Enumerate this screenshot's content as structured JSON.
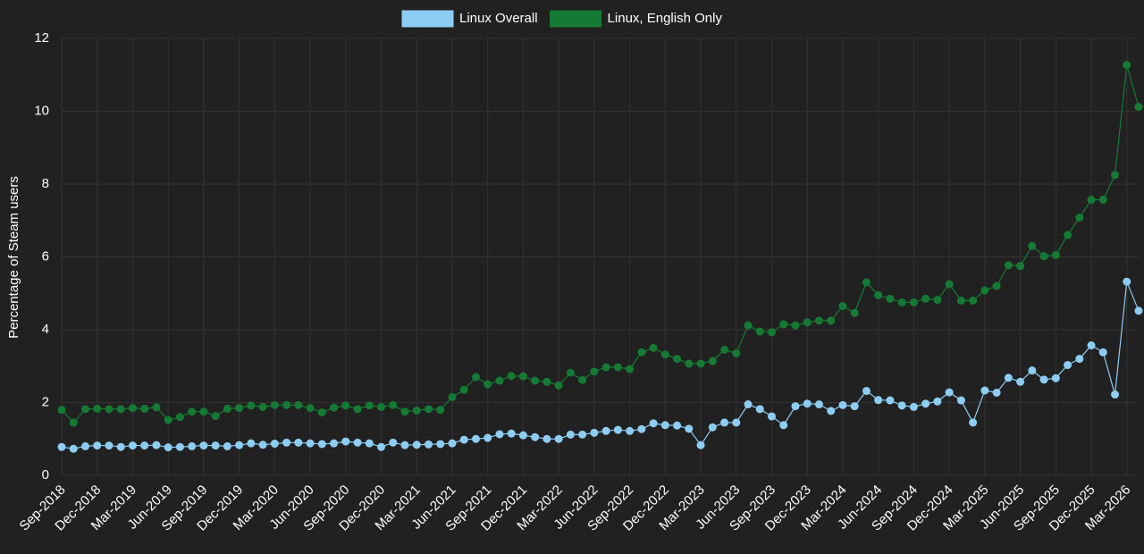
{
  "chart_data": {
    "type": "line",
    "y_label": "Percentage of Steam users",
    "categories": [
      "Sep-2018",
      null,
      null,
      "Dec-2018",
      null,
      null,
      "Mar-2019",
      null,
      null,
      "Jun-2019",
      null,
      null,
      "Sep-2019",
      null,
      null,
      "Dec-2019",
      null,
      null,
      "Mar-2020",
      null,
      null,
      "Jun-2020",
      null,
      null,
      "Sep-2020",
      null,
      null,
      "Dec-2020",
      null,
      null,
      "Mar-2021",
      null,
      null,
      "Jun-2021",
      null,
      null,
      "Sep-2021",
      null,
      null,
      "Dec-2021",
      null,
      null,
      "Mar-2022",
      null,
      null,
      "Jun-2022",
      null,
      null,
      "Sep-2022",
      null,
      null,
      "Dec-2022",
      null,
      null,
      "Mar-2023",
      null,
      null,
      "Jun-2023",
      null,
      null,
      "Sep-2023",
      null,
      null,
      "Dec-2023",
      null,
      null,
      "Mar-2024",
      null,
      null,
      "Jun-2024",
      null,
      null,
      "Sep-2024",
      null,
      null,
      "Dec-2024",
      null,
      null,
      "Mar-2025",
      null,
      null,
      "Jun-2025",
      null,
      null,
      "Sep-2025",
      null,
      null,
      "Dec-2025",
      null,
      null,
      "Mar-2026",
      null
    ],
    "series": [
      {
        "name": "Linux Overall",
        "color": "#8ecdf2",
        "values": [
          0.78,
          0.73,
          0.8,
          0.82,
          0.82,
          0.78,
          0.82,
          0.82,
          0.83,
          0.77,
          0.78,
          0.8,
          0.82,
          0.82,
          0.8,
          0.83,
          0.88,
          0.84,
          0.87,
          0.9,
          0.9,
          0.88,
          0.86,
          0.88,
          0.93,
          0.9,
          0.88,
          0.78,
          0.9,
          0.83,
          0.84,
          0.85,
          0.86,
          0.88,
          0.98,
          1.0,
          1.03,
          1.13,
          1.15,
          1.1,
          1.05,
          1.0,
          1.0,
          1.12,
          1.12,
          1.17,
          1.22,
          1.25,
          1.22,
          1.27,
          1.43,
          1.38,
          1.37,
          1.28,
          0.83,
          1.32,
          1.45,
          1.45,
          1.95,
          1.82,
          1.62,
          1.38,
          1.9,
          1.97,
          1.95,
          1.77,
          1.93,
          1.9,
          2.32,
          2.07,
          2.06,
          1.92,
          1.88,
          1.97,
          2.03,
          2.28,
          2.06,
          1.45,
          2.33,
          2.27,
          2.68,
          2.57,
          2.88,
          2.63,
          2.67,
          3.03,
          3.2,
          3.57,
          3.38,
          2.22,
          5.32,
          4.52
        ]
      },
      {
        "name": "Linux, English Only",
        "color": "#157a34",
        "values": [
          1.8,
          1.45,
          1.82,
          1.83,
          1.82,
          1.82,
          1.85,
          1.83,
          1.87,
          1.52,
          1.6,
          1.75,
          1.75,
          1.63,
          1.83,
          1.85,
          1.92,
          1.88,
          1.93,
          1.93,
          1.93,
          1.85,
          1.73,
          1.86,
          1.92,
          1.82,
          1.92,
          1.88,
          1.93,
          1.75,
          1.78,
          1.82,
          1.8,
          2.15,
          2.35,
          2.7,
          2.5,
          2.6,
          2.73,
          2.72,
          2.6,
          2.57,
          2.47,
          2.82,
          2.62,
          2.85,
          2.97,
          2.97,
          2.92,
          3.38,
          3.5,
          3.32,
          3.2,
          3.07,
          3.07,
          3.14,
          3.45,
          3.35,
          4.12,
          3.95,
          3.93,
          4.15,
          4.12,
          4.2,
          4.25,
          4.25,
          4.65,
          4.46,
          5.3,
          4.95,
          4.85,
          4.75,
          4.75,
          4.85,
          4.82,
          5.25,
          4.8,
          4.8,
          5.08,
          5.2,
          5.77,
          5.75,
          6.3,
          6.02,
          6.05,
          6.6,
          7.08,
          7.57,
          7.57,
          8.25,
          11.27,
          10.12
        ]
      }
    ],
    "ylim": [
      0,
      12
    ],
    "yticks": [
      0,
      2,
      4,
      6,
      8,
      10,
      12
    ],
    "grid": true,
    "legend": "top"
  }
}
